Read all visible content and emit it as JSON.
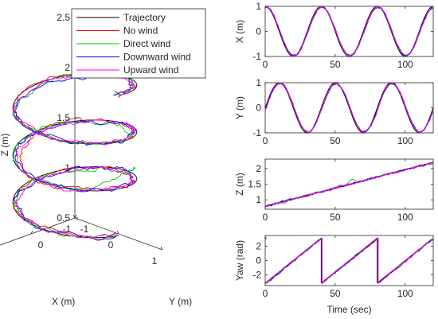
{
  "chart_data": [
    {
      "type": "line3d",
      "xlabel": "X (m)",
      "ylabel": "Y (m)",
      "zlabel": "Z (m)",
      "xlim": [
        -1,
        1
      ],
      "ylim": [
        -1,
        1
      ],
      "zlim": [
        0.5,
        2.5
      ],
      "xticks": [
        "-1",
        "0",
        "1"
      ],
      "yticks": [
        "-1",
        "0",
        "1"
      ],
      "zticks": [
        "0.5",
        "1",
        "1.5",
        "2",
        "2.5"
      ],
      "legend": {
        "position": "top-left",
        "entries": [
          {
            "name": "Trajectory",
            "color": "#000000"
          },
          {
            "name": "No wind",
            "color": "#ff0000"
          },
          {
            "name": "Direct wind",
            "color": "#00cc00"
          },
          {
            "name": "Downward wind",
            "color": "#0000ff"
          },
          {
            "name": "Upward wind",
            "color": "#ff00ff"
          }
        ]
      },
      "trajectory": {
        "shape": "helix",
        "radius": 1,
        "turns": 3,
        "z_start": 0.8,
        "z_end": 2.2
      }
    },
    {
      "type": "line",
      "ylabel": "X (m)",
      "xlim": [
        0,
        120
      ],
      "ylim": [
        -1,
        1
      ],
      "xticks": [
        "0",
        "50",
        "100"
      ],
      "yticks": [
        "-1",
        "0",
        "1"
      ],
      "function": {
        "form": "sine",
        "amplitude": 1,
        "period": 40,
        "phase": "cos"
      }
    },
    {
      "type": "line",
      "ylabel": "Y (m)",
      "xlim": [
        0,
        120
      ],
      "ylim": [
        -1,
        1
      ],
      "xticks": [
        "0",
        "50",
        "100"
      ],
      "yticks": [
        "-1",
        "0",
        "1"
      ],
      "function": {
        "form": "sine",
        "amplitude": 1,
        "period": 40,
        "phase": "sin"
      }
    },
    {
      "type": "line",
      "ylabel": "Z (m)",
      "xlim": [
        0,
        120
      ],
      "ylim": [
        0.7,
        2.3
      ],
      "xticks": [
        "0",
        "50",
        "100"
      ],
      "yticks": [
        "1",
        "1.5",
        "2"
      ],
      "function": {
        "form": "linear",
        "start": [
          0,
          0.8
        ],
        "end": [
          120,
          2.2
        ]
      }
    },
    {
      "type": "line",
      "ylabel": "Yaw (rad)",
      "xlabel": "Time (sec)",
      "xlim": [
        0,
        120
      ],
      "ylim": [
        -3.5,
        3.5
      ],
      "xticks": [
        "0",
        "50",
        "100"
      ],
      "yticks": [
        "-2",
        "0",
        "2"
      ],
      "function": {
        "form": "sawtooth",
        "period": 40,
        "min": -3.14159,
        "max": 3.14159
      }
    }
  ]
}
